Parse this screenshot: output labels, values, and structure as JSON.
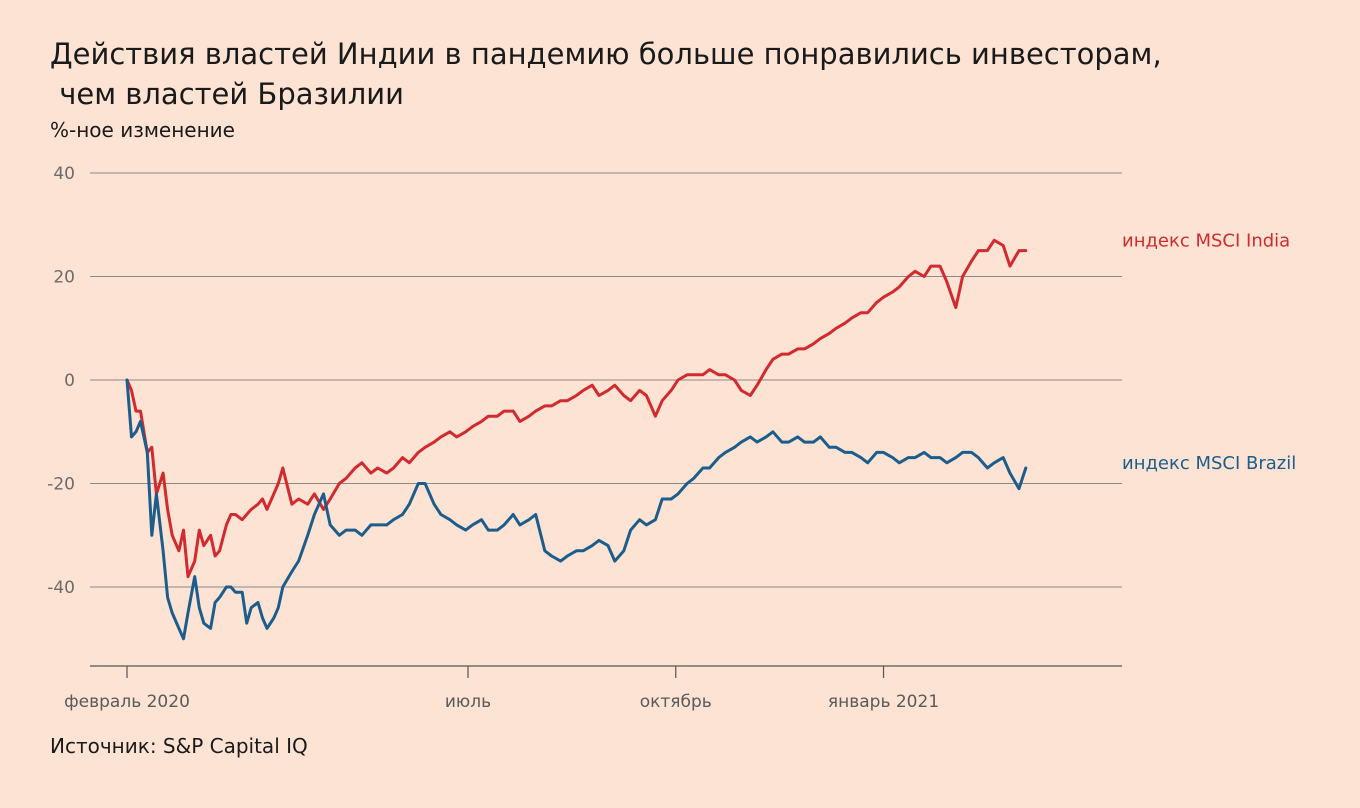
{
  "header": {
    "title_line1": "Действия властей Индии в пандемию больше понравились инвесторам,",
    "title_line2": " чем властей Бразилии",
    "subtitle": "%-ное изменение"
  },
  "footer": {
    "source": "Источник: S&P Capital IQ"
  },
  "colors": {
    "india": "#d12a2f",
    "brazil": "#1c5d8c",
    "grid": "#8a8a8a",
    "axis": "#555555"
  },
  "chart_data": {
    "type": "line",
    "title": "Действия властей Индии в пандемию больше понравились инвесторам, чем властей Бразилии",
    "ylabel": "%-ное изменение",
    "xlabel": "",
    "grid": true,
    "legend": "right, labels at line ends",
    "ylim": [
      -55,
      40
    ],
    "yticks": [
      40,
      20,
      0,
      -20,
      -40
    ],
    "ytick_labels": [
      "40",
      "20",
      "0",
      "-20",
      "-40"
    ],
    "x_domain": [
      "2020-02-01",
      "2021-03-05"
    ],
    "xticks": [
      {
        "date": "2020-02-01",
        "label": "февраль 2020"
      },
      {
        "date": "2020-07-01",
        "label": "июль"
      },
      {
        "date": "2020-10-01",
        "label": "октябрь"
      },
      {
        "date": "2021-01-01",
        "label": "январь 2021"
      }
    ],
    "x": [
      "2020-02-01",
      "2020-02-03",
      "2020-02-05",
      "2020-02-07",
      "2020-02-10",
      "2020-02-12",
      "2020-02-14",
      "2020-02-17",
      "2020-02-19",
      "2020-02-21",
      "2020-02-24",
      "2020-02-26",
      "2020-02-28",
      "2020-03-02",
      "2020-03-04",
      "2020-03-06",
      "2020-03-09",
      "2020-03-11",
      "2020-03-13",
      "2020-03-16",
      "2020-03-18",
      "2020-03-20",
      "2020-03-23",
      "2020-03-25",
      "2020-03-27",
      "2020-03-30",
      "2020-04-01",
      "2020-04-03",
      "2020-04-06",
      "2020-04-08",
      "2020-04-10",
      "2020-04-14",
      "2020-04-17",
      "2020-04-21",
      "2020-04-24",
      "2020-04-28",
      "2020-05-01",
      "2020-05-05",
      "2020-05-08",
      "2020-05-12",
      "2020-05-15",
      "2020-05-19",
      "2020-05-22",
      "2020-05-26",
      "2020-05-29",
      "2020-06-02",
      "2020-06-05",
      "2020-06-09",
      "2020-06-12",
      "2020-06-16",
      "2020-06-19",
      "2020-06-23",
      "2020-06-26",
      "2020-06-30",
      "2020-07-03",
      "2020-07-07",
      "2020-07-10",
      "2020-07-14",
      "2020-07-17",
      "2020-07-21",
      "2020-07-24",
      "2020-07-28",
      "2020-07-31",
      "2020-08-04",
      "2020-08-07",
      "2020-08-11",
      "2020-08-14",
      "2020-08-18",
      "2020-08-21",
      "2020-08-25",
      "2020-08-28",
      "2020-09-01",
      "2020-09-04",
      "2020-09-08",
      "2020-09-11",
      "2020-09-15",
      "2020-09-18",
      "2020-09-22",
      "2020-09-25",
      "2020-09-29",
      "2020-10-02",
      "2020-10-06",
      "2020-10-09",
      "2020-10-13",
      "2020-10-16",
      "2020-10-20",
      "2020-10-23",
      "2020-10-27",
      "2020-10-30",
      "2020-11-03",
      "2020-11-06",
      "2020-11-10",
      "2020-11-13",
      "2020-11-17",
      "2020-11-20",
      "2020-11-24",
      "2020-11-27",
      "2020-12-01",
      "2020-12-04",
      "2020-12-08",
      "2020-12-11",
      "2020-12-15",
      "2020-12-18",
      "2020-12-22",
      "2020-12-25",
      "2020-12-29",
      "2021-01-01",
      "2021-01-05",
      "2021-01-08",
      "2021-01-12",
      "2021-01-15",
      "2021-01-19",
      "2021-01-22",
      "2021-01-26",
      "2021-01-29",
      "2021-02-02",
      "2021-02-05",
      "2021-02-09",
      "2021-02-12",
      "2021-02-16",
      "2021-02-19",
      "2021-02-23",
      "2021-02-26",
      "2021-03-02",
      "2021-03-05"
    ],
    "series": [
      {
        "name": "индекс MSCI India",
        "values": [
          0,
          -2,
          -6,
          -6,
          -14,
          -13,
          -22,
          -18,
          -25,
          -30,
          -33,
          -29,
          -38,
          -35,
          -29,
          -32,
          -30,
          -34,
          -33,
          -28,
          -26,
          -26,
          -27,
          -26,
          -25,
          -24,
          -23,
          -25,
          -22,
          -20,
          -17,
          -24,
          -23,
          -24,
          -22,
          -25,
          -23,
          -20,
          -19,
          -17,
          -16,
          -18,
          -17,
          -18,
          -17,
          -15,
          -16,
          -14,
          -13,
          -12,
          -11,
          -10,
          -11,
          -10,
          -9,
          -8,
          -7,
          -7,
          -6,
          -6,
          -8,
          -7,
          -6,
          -5,
          -5,
          -4,
          -4,
          -3,
          -2,
          -1,
          -3,
          -2,
          -1,
          -3,
          -4,
          -2,
          -3,
          -7,
          -4,
          -2,
          0,
          1,
          1,
          1,
          2,
          1,
          1,
          0,
          -2,
          -3,
          -1,
          2,
          4,
          5,
          5,
          6,
          6,
          7,
          8,
          9,
          10,
          11,
          12,
          13,
          13,
          15,
          16,
          17,
          18,
          20,
          21,
          20,
          22,
          22,
          19,
          14,
          20,
          23,
          25,
          25,
          27,
          26,
          22,
          25,
          25
        ],
        "color": "#d12a2f"
      },
      {
        "name": "индекс MSCI Brazil",
        "values": [
          0,
          -11,
          -10,
          -8,
          -14,
          -30,
          -22,
          -33,
          -42,
          -45,
          -48,
          -50,
          -45,
          -38,
          -44,
          -47,
          -48,
          -43,
          -42,
          -40,
          -40,
          -41,
          -41,
          -47,
          -44,
          -43,
          -46,
          -48,
          -46,
          -44,
          -40,
          -37,
          -35,
          -30,
          -26,
          -22,
          -28,
          -30,
          -29,
          -29,
          -30,
          -28,
          -28,
          -28,
          -27,
          -26,
          -24,
          -20,
          -20,
          -24,
          -26,
          -27,
          -28,
          -29,
          -28,
          -27,
          -29,
          -29,
          -28,
          -26,
          -28,
          -27,
          -26,
          -33,
          -34,
          -35,
          -34,
          -33,
          -33,
          -32,
          -31,
          -32,
          -35,
          -33,
          -29,
          -27,
          -28,
          -27,
          -23,
          -23,
          -22,
          -20,
          -19,
          -17,
          -17,
          -15,
          -14,
          -13,
          -12,
          -11,
          -12,
          -11,
          -10,
          -12,
          -12,
          -11,
          -12,
          -12,
          -11,
          -13,
          -13,
          -14,
          -14,
          -15,
          -16,
          -14,
          -14,
          -15,
          -16,
          -15,
          -15,
          -14,
          -15,
          -15,
          -16,
          -15,
          -14,
          -14,
          -15,
          -17,
          -16,
          -15,
          -18,
          -21,
          -17
        ],
        "color": "#1c5d8c"
      }
    ]
  }
}
